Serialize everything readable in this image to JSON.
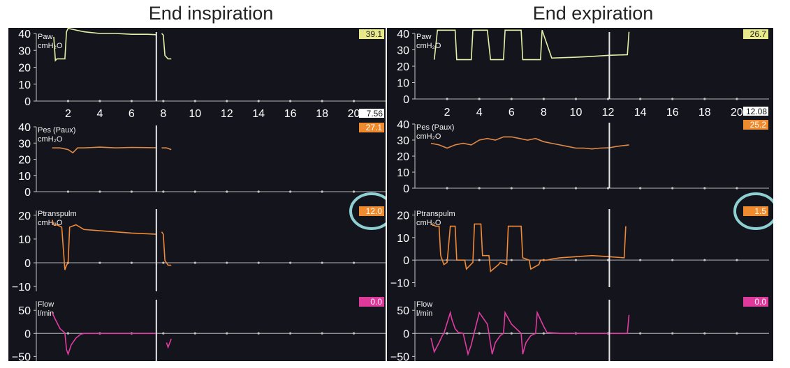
{
  "figure": {
    "left_title": "End inspiration",
    "right_title": "End expiration"
  },
  "colors": {
    "background": "#14141d",
    "paw": "#e3f0a6",
    "pes": "#e08a48",
    "ptrans": "#ef8a38",
    "flow": "#df3d9f",
    "badge_yellow": "#e7e88b",
    "badge_orange": "#f08a2e",
    "badge_white": "#ffffff",
    "badge_pink": "#e0399c",
    "circle": "#8ecfd1"
  },
  "chart_data": [
    {
      "type": "line",
      "panel": "End inspiration",
      "x_tick_labels": [
        "2",
        "4",
        "6",
        "8",
        "10",
        "12",
        "14",
        "16",
        "18",
        "20"
      ],
      "x_range": [
        0,
        22
      ],
      "time_marker_value": "7.56",
      "time_marker_x": 7.56,
      "tracks": [
        {
          "id": "paw",
          "label_lines": [
            "Paw",
            "cmH₂O"
          ],
          "yticks": [
            "40",
            "30",
            "20",
            "10",
            "0"
          ],
          "ylim": [
            0,
            40
          ],
          "badge": "39.1",
          "badge_color": "yellow",
          "x": [
            1.1,
            1.2,
            1.3,
            1.8,
            1.9,
            2.0,
            3,
            4,
            5,
            6,
            7,
            7.5,
            7.56
          ],
          "y": [
            38,
            24,
            25,
            25,
            41,
            43,
            41,
            40,
            40,
            39.5,
            39.5,
            39.3,
            39.1
          ],
          "x2": [
            7.9,
            8.0,
            8.1,
            8.3,
            8.5
          ],
          "y2": [
            40,
            39,
            27,
            25,
            25
          ]
        },
        {
          "id": "pes",
          "label_lines": [
            "Pes (Paux)",
            "cmH₂O"
          ],
          "yticks": [
            "40",
            "30",
            "20",
            "10",
            "0"
          ],
          "ylim": [
            0,
            40
          ],
          "badge": "27.1",
          "badge_color": "orange",
          "x": [
            1.0,
            1.5,
            2.0,
            2.3,
            2.6,
            3,
            4,
            5,
            6,
            7,
            7.56
          ],
          "y": [
            27,
            27,
            26,
            24,
            27,
            27,
            27.5,
            27,
            27.3,
            27.2,
            27.1
          ],
          "x2": [
            7.9,
            8.2,
            8.5
          ],
          "y2": [
            27,
            27,
            26
          ]
        },
        {
          "id": "ptranspulm",
          "label_lines": [
            "Ptranspulm",
            "cmH₂O"
          ],
          "yticks": [
            "20",
            "10",
            "0",
            "−10"
          ],
          "ylim": [
            -12,
            22
          ],
          "badge": "12.0",
          "badge_color": "orange",
          "circled": true,
          "x": [
            1.0,
            1.1,
            1.3,
            1.6,
            1.8,
            1.9,
            2.0,
            2.1,
            2.5,
            3,
            4,
            5,
            6,
            7,
            7.56
          ],
          "y": [
            18,
            16,
            16,
            15,
            -3,
            -1,
            0,
            15,
            16,
            14,
            13.5,
            13,
            12.5,
            12.2,
            12.0
          ],
          "x2": [
            7.9,
            8.0,
            8.1,
            8.3,
            8.5
          ],
          "y2": [
            13,
            12,
            1,
            -1,
            -1
          ]
        },
        {
          "id": "flow",
          "label_lines": [
            "Flow",
            "l/min"
          ],
          "yticks": [
            "50",
            "0",
            "−50"
          ],
          "ylim": [
            -60,
            70
          ],
          "badge": "0.0",
          "badge_color": "pink",
          "x": [
            1.0,
            1.2,
            1.5,
            1.8,
            1.9,
            2.0,
            2.2,
            2.5,
            2.8,
            3.0,
            4,
            5,
            6,
            7,
            7.56
          ],
          "y": [
            45,
            30,
            10,
            1,
            -35,
            -45,
            -25,
            -10,
            -2,
            0,
            0,
            0,
            0,
            0,
            0
          ],
          "x2": [
            8.2,
            8.3,
            8.5
          ],
          "y2": [
            -20,
            -30,
            -12
          ]
        }
      ]
    },
    {
      "type": "line",
      "panel": "End expiration",
      "x_tick_labels": [
        "2",
        "4",
        "6",
        "8",
        "10",
        "12",
        "14",
        "16",
        "18",
        "20"
      ],
      "x_range": [
        0,
        22
      ],
      "time_marker_value": "12.08",
      "time_marker_x": 12.08,
      "tracks": [
        {
          "id": "paw",
          "label_lines": [
            "Paw",
            "cmH₂O"
          ],
          "yticks": [
            "40",
            "30",
            "20",
            "10",
            "0"
          ],
          "ylim": [
            0,
            40
          ],
          "badge": "26.7",
          "badge_color": "yellow",
          "x": [
            1.2,
            1.4,
            2.0,
            2.5,
            2.6,
            3.5,
            3.6,
            4.5,
            4.7,
            5.5,
            5.6,
            6.6,
            6.7,
            7.8,
            7.9,
            8.5,
            10,
            11,
            12.08,
            13.2,
            13.3
          ],
          "y": [
            24,
            42,
            42,
            42,
            24,
            24,
            42,
            42,
            24,
            24,
            42,
            42,
            24,
            24,
            42,
            25,
            25.5,
            26,
            26.7,
            27,
            41
          ],
          "x2": [],
          "y2": []
        },
        {
          "id": "pes",
          "label_lines": [
            "Pes (Paux)",
            "cmH₂O"
          ],
          "yticks": [
            "40",
            "30",
            "20",
            "10",
            "0"
          ],
          "ylim": [
            0,
            40
          ],
          "badge": "25.2",
          "badge_color": "orange",
          "x": [
            1.0,
            1.5,
            2.0,
            2.5,
            3,
            3.5,
            4,
            4.5,
            5,
            5.5,
            6,
            6.5,
            7,
            7.5,
            8,
            8.5,
            9,
            9.5,
            10,
            10.5,
            11,
            11.5,
            12.08,
            12.5,
            13.3
          ],
          "y": [
            28,
            27,
            25,
            27,
            28,
            27,
            30,
            31,
            30,
            32,
            32,
            31,
            30,
            31,
            29,
            28,
            27,
            26,
            25,
            25,
            24.5,
            25,
            25.2,
            26,
            27
          ],
          "x2": [],
          "y2": []
        },
        {
          "id": "ptranspulm",
          "label_lines": [
            "Ptranspulm",
            "cmH₂O"
          ],
          "yticks": [
            "20",
            "10",
            "0",
            "−10"
          ],
          "ylim": [
            -12,
            22
          ],
          "badge": "1.5",
          "badge_color": "orange",
          "circled": true,
          "x": [
            1.0,
            1.3,
            1.5,
            1.6,
            1.8,
            2.0,
            2.2,
            2.5,
            2.6,
            3.1,
            3.2,
            3.6,
            3.7,
            4.1,
            4.2,
            4.6,
            4.7,
            5.2,
            5.3,
            5.7,
            5.8,
            6.6,
            6.7,
            7.1,
            7.2,
            7.7,
            7.8,
            8.2,
            8.5,
            9,
            10,
            11,
            12.08,
            13.0,
            13.1
          ],
          "y": [
            16,
            15,
            15,
            2,
            -2,
            -1,
            15,
            15,
            0,
            0,
            -4,
            -1,
            16,
            16,
            2,
            2,
            -5,
            -2,
            -1,
            -2,
            15,
            15,
            1,
            0,
            -4,
            -2,
            0,
            0,
            0.5,
            1,
            1.5,
            2,
            1.5,
            1,
            15
          ],
          "x2": [],
          "y2": []
        },
        {
          "id": "flow",
          "label_lines": [
            "Flow",
            "l/min"
          ],
          "yticks": [
            "50",
            "0",
            "−50"
          ],
          "ylim": [
            -60,
            70
          ],
          "badge": "0.0",
          "badge_color": "pink",
          "x": [
            1.0,
            1.2,
            1.5,
            1.7,
            1.8,
            2.2,
            2.3,
            2.5,
            2.7,
            3.0,
            3.3,
            3.5,
            3.6,
            4.0,
            4.5,
            4.6,
            4.8,
            5.0,
            5.3,
            5.5,
            5.6,
            6.0,
            6.6,
            6.7,
            6.9,
            7.2,
            7.5,
            7.6,
            8.0,
            8.2,
            9,
            10,
            11,
            12.08,
            13.2,
            13.3
          ],
          "y": [
            -10,
            -40,
            -20,
            -5,
            0,
            45,
            30,
            10,
            2,
            0,
            -45,
            -25,
            -10,
            45,
            20,
            0,
            -45,
            -20,
            -5,
            0,
            45,
            20,
            0,
            -45,
            -20,
            -5,
            0,
            45,
            15,
            2,
            0,
            0,
            0,
            0,
            0,
            40
          ],
          "x2": [],
          "y2": []
        }
      ]
    }
  ]
}
